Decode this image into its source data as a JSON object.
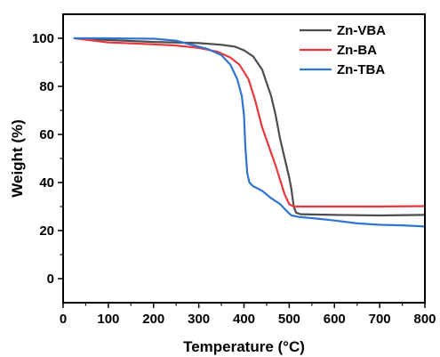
{
  "chart_data": {
    "type": "line",
    "xlabel": "Temperature (°C)",
    "ylabel": "Weight (%)",
    "xlim": [
      0,
      800
    ],
    "ylim": [
      -10,
      110
    ],
    "xticks": [
      "0",
      "100",
      "200",
      "300",
      "400",
      "500",
      "600",
      "700",
      "800"
    ],
    "yticks": [
      "0",
      "20",
      "40",
      "60",
      "80",
      "100"
    ],
    "grid": false,
    "legend": "top-right",
    "series": [
      {
        "name": "Zn-VBA",
        "color": "#4d4d4d",
        "points": [
          [
            25,
            100
          ],
          [
            100,
            99.3
          ],
          [
            200,
            98.5
          ],
          [
            300,
            98
          ],
          [
            350,
            97.3
          ],
          [
            380,
            96.5
          ],
          [
            400,
            95
          ],
          [
            420,
            92.5
          ],
          [
            440,
            87
          ],
          [
            460,
            76
          ],
          [
            470,
            68
          ],
          [
            480,
            58
          ],
          [
            490,
            50
          ],
          [
            500,
            42
          ],
          [
            505,
            37
          ],
          [
            510,
            30
          ],
          [
            515,
            27.5
          ],
          [
            525,
            26.8
          ],
          [
            600,
            26.5
          ],
          [
            700,
            26.3
          ],
          [
            800,
            26.5
          ]
        ]
      },
      {
        "name": "Zn-BA",
        "color": "#e8383d",
        "points": [
          [
            25,
            100
          ],
          [
            100,
            98.3
          ],
          [
            200,
            97.5
          ],
          [
            250,
            97
          ],
          [
            300,
            96
          ],
          [
            340,
            94.5
          ],
          [
            370,
            92
          ],
          [
            390,
            89
          ],
          [
            410,
            83
          ],
          [
            425,
            74
          ],
          [
            440,
            63
          ],
          [
            455,
            55
          ],
          [
            470,
            47
          ],
          [
            480,
            41
          ],
          [
            490,
            35
          ],
          [
            500,
            31
          ],
          [
            510,
            30
          ],
          [
            600,
            30
          ],
          [
            700,
            30
          ],
          [
            800,
            30.2
          ]
        ]
      },
      {
        "name": "Zn-TBA",
        "color": "#2f74d0",
        "points": [
          [
            25,
            100
          ],
          [
            100,
            100
          ],
          [
            200,
            99.8
          ],
          [
            250,
            99
          ],
          [
            280,
            97.5
          ],
          [
            320,
            95.5
          ],
          [
            350,
            93
          ],
          [
            370,
            89
          ],
          [
            385,
            83
          ],
          [
            395,
            76
          ],
          [
            400,
            68
          ],
          [
            403,
            55
          ],
          [
            407,
            44
          ],
          [
            412,
            40
          ],
          [
            420,
            38.5
          ],
          [
            440,
            36.5
          ],
          [
            460,
            33.5
          ],
          [
            480,
            31
          ],
          [
            495,
            28
          ],
          [
            505,
            26.3
          ],
          [
            520,
            25.7
          ],
          [
            560,
            25
          ],
          [
            600,
            24.2
          ],
          [
            650,
            23
          ],
          [
            700,
            22.4
          ],
          [
            750,
            22.2
          ],
          [
            800,
            21.7
          ]
        ]
      }
    ]
  }
}
